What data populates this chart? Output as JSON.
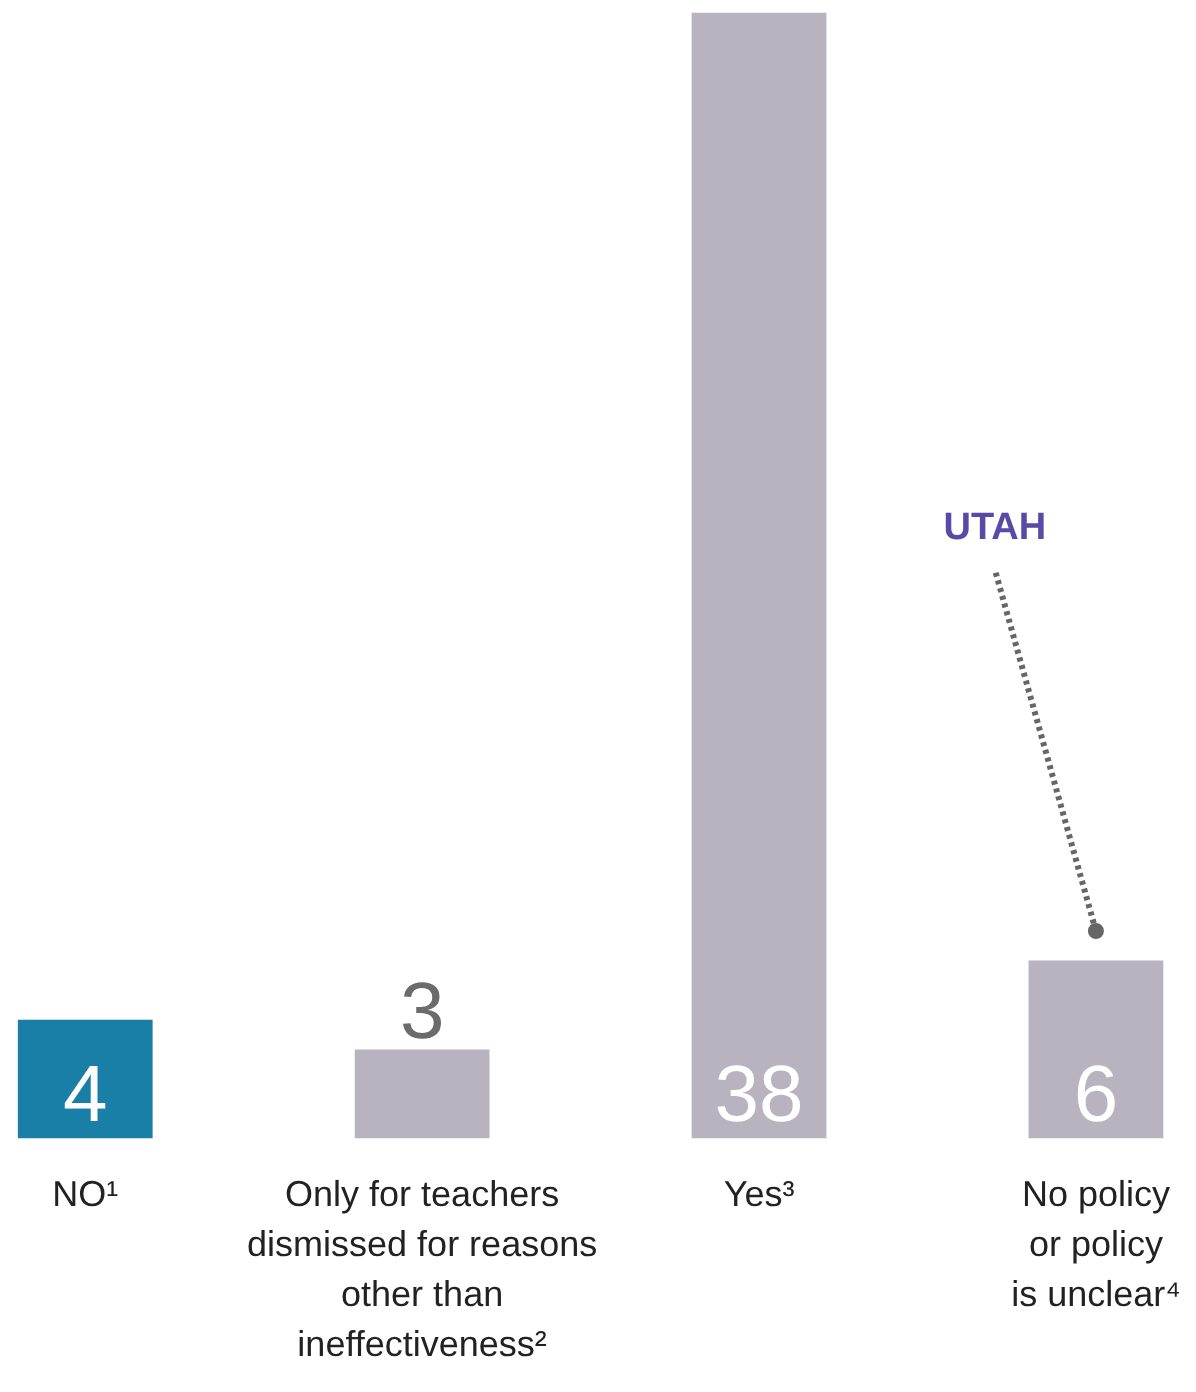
{
  "chart_data": {
    "type": "bar",
    "categories": [
      "NO¹",
      "Only for teachers dismissed for reasons other than ineffectiveness²",
      "Yes³",
      "No policy or policy is unclear⁴"
    ],
    "values": [
      4,
      3,
      38,
      6
    ],
    "colors": [
      "#1a7fa6",
      "#b8b3bf",
      "#b8b3bf",
      "#b8b3bf"
    ],
    "data_labels": true,
    "annotations": [
      {
        "text": "UTAH",
        "x": "No policy or policy is unclear⁴",
        "y": 7
      }
    ]
  }
}
